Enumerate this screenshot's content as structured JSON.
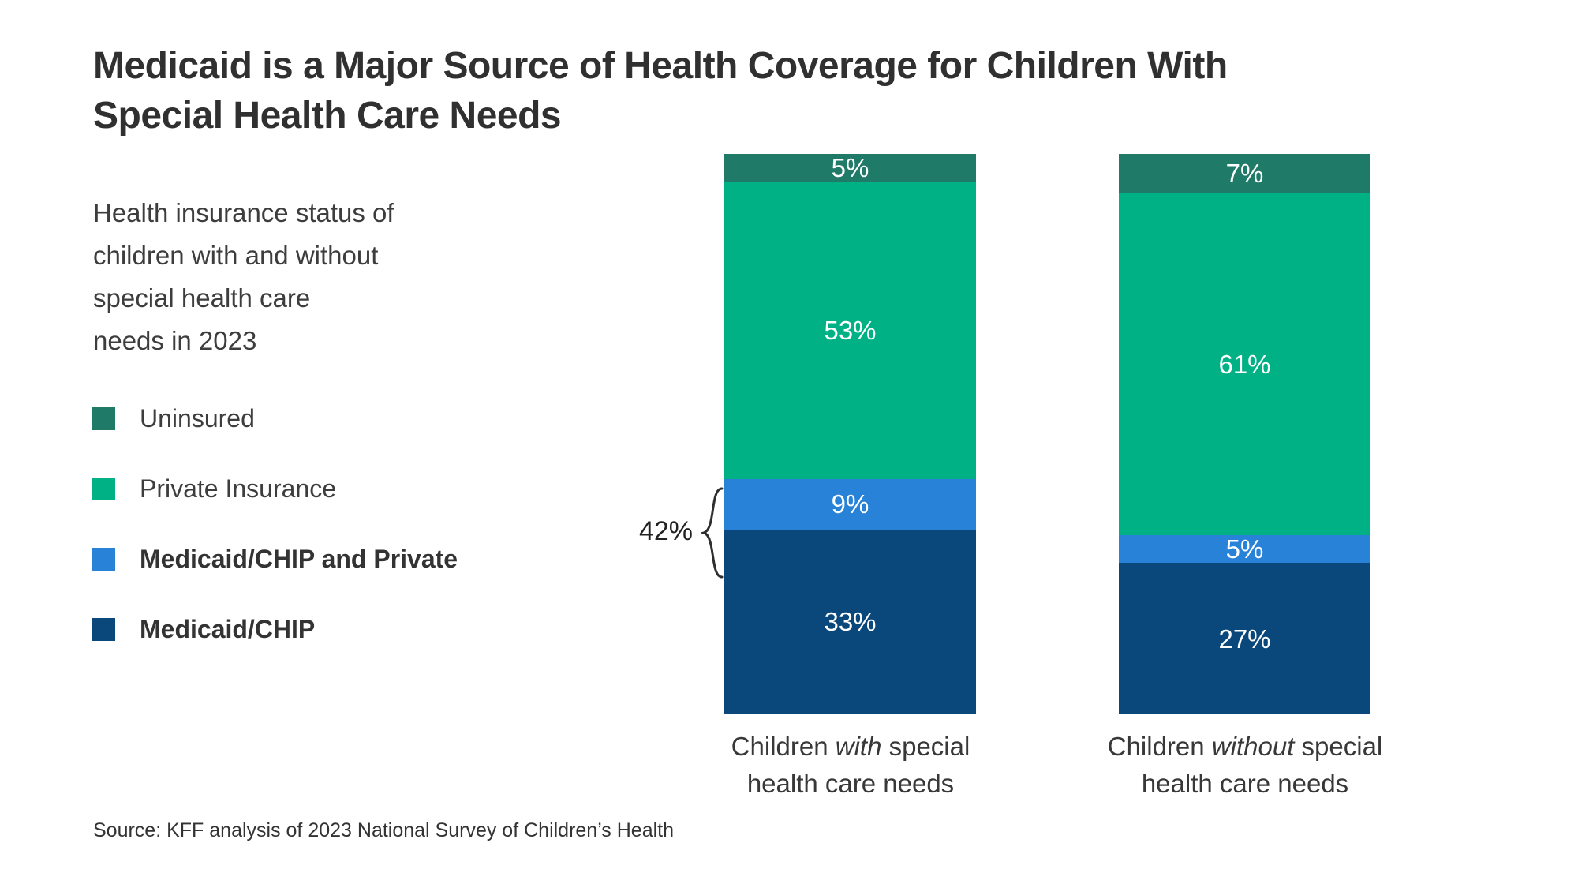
{
  "header": {
    "title_line1": "Medicaid is a Major Source of Health Coverage for Children With",
    "title_line2": "Special Health Care Needs"
  },
  "subtitle_lines": [
    "Health insurance status of",
    "children with and without",
    "special health care",
    "needs in 2023"
  ],
  "legend": {
    "items": [
      {
        "label": "Uninsured",
        "color": "#1f7a68",
        "bold": false
      },
      {
        "label": "Private Insurance",
        "color": "#00b185",
        "bold": false
      },
      {
        "label": "Medicaid/CHIP and Private",
        "color": "#2882d8",
        "bold": true
      },
      {
        "label": "Medicaid/CHIP",
        "color": "#0a487c",
        "bold": true
      }
    ]
  },
  "chart_data": {
    "type": "bar",
    "stacked": true,
    "unit": "percent",
    "ylim": [
      0,
      100
    ],
    "grid": false,
    "legend_position": "left",
    "categories": [
      {
        "prefix": "Children ",
        "emphasis": "with",
        "suffix": " special",
        "line2": "health care needs"
      },
      {
        "prefix": "Children ",
        "emphasis": "without",
        "suffix": " special",
        "line2": "health care needs"
      }
    ],
    "series_top_to_bottom": [
      {
        "name": "Uninsured",
        "color": "#1f7a68",
        "values": [
          5,
          7
        ]
      },
      {
        "name": "Private Insurance",
        "color": "#00b185",
        "values": [
          53,
          61
        ]
      },
      {
        "name": "Medicaid/CHIP and Private",
        "color": "#2882d8",
        "values": [
          9,
          5
        ]
      },
      {
        "name": "Medicaid/CHIP",
        "color": "#0a487c",
        "values": [
          33,
          27
        ]
      }
    ],
    "data_labels": [
      [
        "5%",
        "53%",
        "9%",
        "33%"
      ],
      [
        "7%",
        "61%",
        "5%",
        "27%"
      ]
    ],
    "annotation": {
      "text": "42%"
    }
  },
  "source": "Source: KFF analysis of 2023 National Survey of Children’s Health"
}
